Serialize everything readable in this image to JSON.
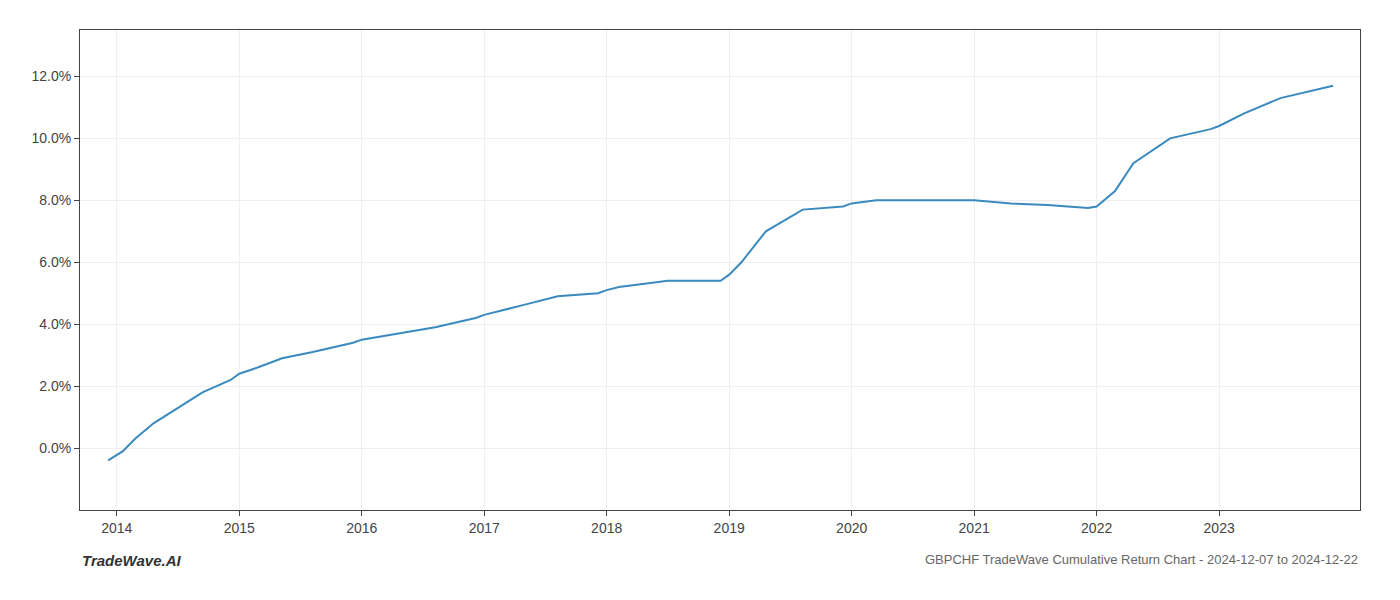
{
  "chart_data": {
    "type": "line",
    "title": "GBPCHF TradeWave Cumulative Return Chart - 2024-12-07 to 2024-12-22",
    "annotations": [
      "TradeWave.AI"
    ],
    "color": "#3a8abf",
    "x": [
      2013.93,
      2014.05,
      2014.15,
      2014.3,
      2014.5,
      2014.7,
      2014.93,
      2015.0,
      2015.15,
      2015.35,
      2015.6,
      2015.93,
      2016.0,
      2016.3,
      2016.6,
      2016.93,
      2017.0,
      2017.3,
      2017.6,
      2017.93,
      2018.0,
      2018.1,
      2018.3,
      2018.5,
      2018.93,
      2019.0,
      2019.1,
      2019.3,
      2019.6,
      2019.93,
      2020.0,
      2020.2,
      2020.5,
      2020.93,
      2021.0,
      2021.3,
      2021.6,
      2021.93,
      2022.0,
      2022.15,
      2022.3,
      2022.6,
      2022.93,
      2023.0,
      2023.2,
      2023.5,
      2023.93
    ],
    "values": [
      -0.004,
      -0.001,
      0.003,
      0.008,
      0.013,
      0.018,
      0.022,
      0.024,
      0.026,
      0.029,
      0.031,
      0.034,
      0.035,
      0.037,
      0.039,
      0.042,
      0.043,
      0.046,
      0.049,
      0.05,
      0.051,
      0.052,
      0.053,
      0.054,
      0.054,
      0.056,
      0.06,
      0.07,
      0.077,
      0.078,
      0.079,
      0.08,
      0.08,
      0.08,
      0.08,
      0.079,
      0.0785,
      0.0775,
      0.078,
      0.083,
      0.092,
      0.1,
      0.103,
      0.104,
      0.108,
      0.113,
      0.117
    ],
    "xlim": [
      2013.7,
      2024.15
    ],
    "ylim": [
      -0.02,
      0.135
    ],
    "xticks": [
      2014,
      2015,
      2016,
      2017,
      2018,
      2019,
      2020,
      2021,
      2022,
      2023
    ],
    "yticks": [
      {
        "value": 0.0,
        "label": "0.0%"
      },
      {
        "value": 0.02,
        "label": "2.0%"
      },
      {
        "value": 0.04,
        "label": "4.0%"
      },
      {
        "value": 0.06,
        "label": "6.0%"
      },
      {
        "value": 0.08,
        "label": "8.0%"
      },
      {
        "value": 0.1,
        "label": "10.0%"
      },
      {
        "value": 0.12,
        "label": "12.0%"
      }
    ],
    "grid": true
  }
}
